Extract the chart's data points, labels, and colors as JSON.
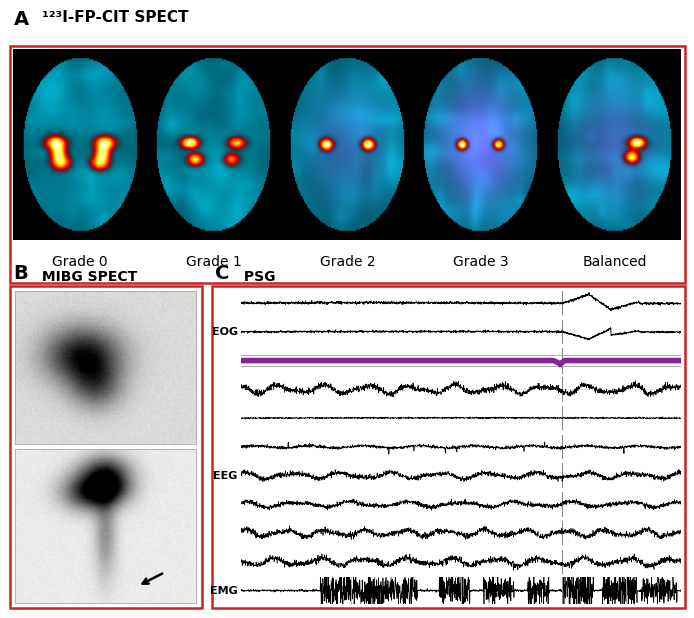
{
  "panel_A_label": "A",
  "panel_A_title": " ¹²³I-FP-CIT SPECT",
  "panel_B_label": "B",
  "panel_B_title": " MIBG SPECT",
  "panel_C_label": "C",
  "panel_C_title": " PSG",
  "grade_labels": [
    "Grade 0",
    "Grade 1",
    "Grade 2",
    "Grade 3",
    "Balanced"
  ],
  "eog_label": "EOG",
  "eeg_label": "EEG",
  "emg_label": "EMG",
  "border_color": "#cc2222",
  "bg_color": "#ffffff",
  "title_fontsize": 11,
  "label_fontsize": 14,
  "grade_fontsize": 10,
  "purple_bar_color": "#882299"
}
